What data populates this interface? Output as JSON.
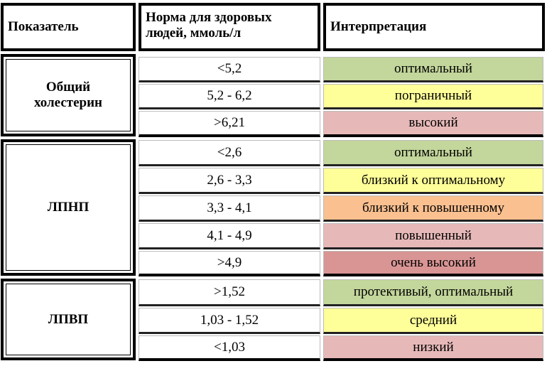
{
  "header": {
    "col1": "Показатель",
    "col2_line1": "Норма для здоровых",
    "col2_line2": "людей, ммоль/л",
    "col3": "Интерпретация"
  },
  "colors": {
    "optimal": "#c3d69b",
    "borderline": "#ffff99",
    "high": "#e6b9b8",
    "near_high": "#fac090",
    "very_high": "#d99594"
  },
  "groups": [
    {
      "name_line1": "Общий",
      "name_line2": "холестерин",
      "rows": [
        {
          "norm": "<5,2",
          "interp": "оптимальный"
        },
        {
          "norm": "5,2 - 6,2",
          "interp": "пограничный"
        },
        {
          "norm": ">6,21",
          "interp": "высокий"
        }
      ]
    },
    {
      "name_line1": "ЛПНП",
      "rows": [
        {
          "norm": "<2,6",
          "interp": "оптимальный"
        },
        {
          "norm": "2,6 - 3,3",
          "interp": "близкий к оптимальному"
        },
        {
          "norm": "3,3 - 4,1",
          "interp": "близкий к повышенному"
        },
        {
          "norm": "4,1 - 4,9",
          "interp": "повышенный"
        },
        {
          "norm": ">4,9",
          "interp": "очень высокий"
        }
      ]
    },
    {
      "name_line1": "ЛПВП",
      "rows": [
        {
          "norm": ">1,52",
          "interp": "протективый, оптимальный"
        },
        {
          "norm": "1,03 - 1,52",
          "interp": "средний"
        },
        {
          "norm": "<1,03",
          "interp": "низкий"
        }
      ]
    }
  ]
}
